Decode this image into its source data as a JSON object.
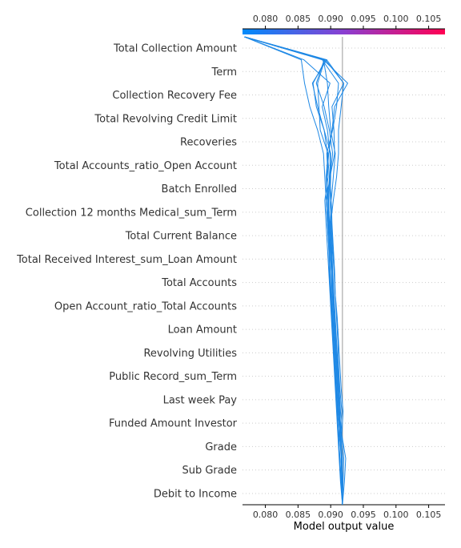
{
  "chart_data": {
    "type": "line",
    "title": "",
    "xlabel": "Model output value",
    "ylabel": "",
    "xlim": [
      0.0765,
      0.1075
    ],
    "base_value": 0.0918,
    "grid": "horizontal dotted row lines",
    "x_ticks": [
      0.08,
      0.085,
      0.09,
      0.095,
      0.1,
      0.105
    ],
    "x_tick_labels": [
      "0.080",
      "0.085",
      "0.090",
      "0.095",
      "0.100",
      "0.105"
    ],
    "colorbar": {
      "from": "#008bfb",
      "to": "#ff0052",
      "range": [
        0.0765,
        0.1075
      ]
    },
    "line_color": "#1E88E5",
    "features": [
      "Total Collection Amount",
      "Term",
      "Collection Recovery Fee",
      "Total Revolving Credit Limit",
      "Recoveries",
      "Total Accounts_ratio_Open Account",
      "Batch Enrolled",
      "Collection 12 months Medical_sum_Term",
      "Total Current Balance",
      "Total Received Interest_sum_Loan Amount",
      "Total Accounts",
      "Open Account_ratio_Total Accounts",
      "Loan Amount",
      "Revolving Utilities",
      "Public Record_sum_Term",
      "Last week Pay",
      "Funded Amount Investor",
      "Grade",
      "Sub Grade",
      "Debit to Income"
    ],
    "series": [
      {
        "values": [
          0.0918,
          0.0918,
          0.0917,
          0.0914,
          0.0912,
          0.091,
          0.0908,
          0.0906,
          0.0904,
          0.0902,
          0.0901,
          0.0899,
          0.0897,
          0.0896,
          0.0898,
          0.0895,
          0.089,
          0.088,
          0.0872,
          0.0894,
          0.0768
        ]
      },
      {
        "values": [
          0.0918,
          0.0918,
          0.0917,
          0.0916,
          0.0913,
          0.0911,
          0.0909,
          0.0907,
          0.0905,
          0.0904,
          0.0902,
          0.09,
          0.0898,
          0.0897,
          0.0899,
          0.0903,
          0.0898,
          0.089,
          0.0878,
          0.089,
          0.0768
        ]
      },
      {
        "values": [
          0.0918,
          0.0917,
          0.0916,
          0.0914,
          0.0911,
          0.0909,
          0.0907,
          0.0905,
          0.0903,
          0.0901,
          0.0899,
          0.0898,
          0.0896,
          0.0895,
          0.0893,
          0.0896,
          0.0884,
          0.0882,
          0.088,
          0.0891,
          0.0768
        ]
      },
      {
        "values": [
          0.0918,
          0.0918,
          0.0917,
          0.0913,
          0.0914,
          0.0912,
          0.091,
          0.0908,
          0.0906,
          0.0904,
          0.0902,
          0.0901,
          0.0899,
          0.0901,
          0.0904,
          0.0907,
          0.09,
          0.0897,
          0.0895,
          0.0889,
          0.0768
        ]
      },
      {
        "values": [
          0.0918,
          0.0916,
          0.0914,
          0.0912,
          0.091,
          0.0908,
          0.0906,
          0.0904,
          0.0902,
          0.09,
          0.0898,
          0.0897,
          0.0895,
          0.0893,
          0.0899,
          0.0906,
          0.0905,
          0.0902,
          0.092,
          0.0894,
          0.0768
        ]
      },
      {
        "values": [
          0.0918,
          0.0919,
          0.092,
          0.0917,
          0.0915,
          0.0913,
          0.0911,
          0.0909,
          0.0907,
          0.0905,
          0.0903,
          0.0902,
          0.09,
          0.0904,
          0.0909,
          0.0912,
          0.0912,
          0.0916,
          0.092,
          0.0892,
          0.0768
        ]
      },
      {
        "values": [
          0.0918,
          0.0915,
          0.0913,
          0.0911,
          0.0909,
          0.0907,
          0.0905,
          0.0903,
          0.0901,
          0.0899,
          0.0897,
          0.0895,
          0.0893,
          0.0891,
          0.0896,
          0.0894,
          0.0903,
          0.0909,
          0.0912,
          0.0887,
          0.0768
        ]
      },
      {
        "values": [
          0.0918,
          0.0917,
          0.0918,
          0.0914,
          0.0917,
          0.0914,
          0.0912,
          0.0911,
          0.0909,
          0.0907,
          0.0906,
          0.0904,
          0.0902,
          0.0901,
          0.0899,
          0.0899,
          0.0895,
          0.0887,
          0.0899,
          0.0859,
          0.0768
        ]
      },
      {
        "values": [
          0.0918,
          0.0921,
          0.0923,
          0.0917,
          0.0919,
          0.0916,
          0.0914,
          0.0912,
          0.091,
          0.0907,
          0.0905,
          0.0903,
          0.0901,
          0.0899,
          0.09,
          0.09,
          0.089,
          0.0878,
          0.0873,
          0.0892,
          0.0768
        ]
      },
      {
        "values": [
          0.0918,
          0.0917,
          0.0916,
          0.0915,
          0.0913,
          0.0911,
          0.0909,
          0.0907,
          0.0905,
          0.0903,
          0.0901,
          0.0899,
          0.0898,
          0.0896,
          0.0894,
          0.0897,
          0.0902,
          0.0906,
          0.0926,
          0.0889,
          0.0768
        ]
      },
      {
        "values": [
          0.0918,
          0.0916,
          0.0914,
          0.0912,
          0.091,
          0.0908,
          0.0906,
          0.0904,
          0.0902,
          0.09,
          0.0899,
          0.0897,
          0.0895,
          0.0893,
          0.0891,
          0.0889,
          0.088,
          0.0868,
          0.086,
          0.0855,
          0.0768
        ]
      }
    ]
  }
}
